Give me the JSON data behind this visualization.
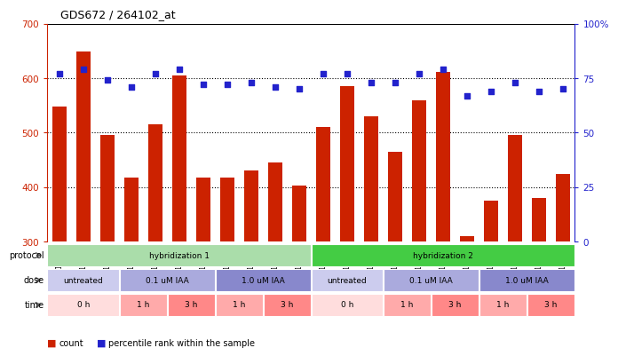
{
  "title": "GDS672 / 264102_at",
  "samples": [
    "GSM18228",
    "GSM18230",
    "GSM18232",
    "GSM18290",
    "GSM18292",
    "GSM18294",
    "GSM18296",
    "GSM18298",
    "GSM18300",
    "GSM18302",
    "GSM18304",
    "GSM18229",
    "GSM18231",
    "GSM18233",
    "GSM18291",
    "GSM18293",
    "GSM18295",
    "GSM18297",
    "GSM18299",
    "GSM18301",
    "GSM18303",
    "GSM18305"
  ],
  "bar_values": [
    548,
    648,
    495,
    418,
    515,
    605,
    418,
    418,
    430,
    445,
    403,
    510,
    585,
    530,
    465,
    560,
    612,
    310,
    375,
    495,
    380,
    425
  ],
  "dot_values": [
    77,
    79,
    74,
    71,
    77,
    79,
    72,
    72,
    73,
    71,
    70,
    77,
    77,
    73,
    73,
    77,
    79,
    67,
    69,
    73,
    69,
    70
  ],
  "ylim_left": [
    300,
    700
  ],
  "ylim_right": [
    0,
    100
  ],
  "yticks_left": [
    300,
    400,
    500,
    600,
    700
  ],
  "yticks_right": [
    0,
    25,
    50,
    75,
    100
  ],
  "bar_color": "#cc2200",
  "dot_color": "#2222cc",
  "bg_color": "#ffffff",
  "protocol_row": {
    "label": "protocol",
    "groups": [
      {
        "text": "hybridization 1",
        "start": 0,
        "end": 11,
        "color": "#aaddaa"
      },
      {
        "text": "hybridization 2",
        "start": 11,
        "end": 22,
        "color": "#44cc44"
      }
    ]
  },
  "dose_row": {
    "label": "dose",
    "groups": [
      {
        "text": "untreated",
        "start": 0,
        "end": 3,
        "color": "#ccccee"
      },
      {
        "text": "0.1 uM IAA",
        "start": 3,
        "end": 7,
        "color": "#aaaadd"
      },
      {
        "text": "1.0 uM IAA",
        "start": 7,
        "end": 11,
        "color": "#8888cc"
      },
      {
        "text": "untreated",
        "start": 11,
        "end": 14,
        "color": "#ccccee"
      },
      {
        "text": "0.1 uM IAA",
        "start": 14,
        "end": 18,
        "color": "#aaaadd"
      },
      {
        "text": "1.0 uM IAA",
        "start": 18,
        "end": 22,
        "color": "#8888cc"
      }
    ]
  },
  "time_row": {
    "label": "time",
    "groups": [
      {
        "text": "0 h",
        "start": 0,
        "end": 3,
        "color": "#ffdddd"
      },
      {
        "text": "1 h",
        "start": 3,
        "end": 5,
        "color": "#ffaaaa"
      },
      {
        "text": "3 h",
        "start": 5,
        "end": 7,
        "color": "#ff8888"
      },
      {
        "text": "1 h",
        "start": 7,
        "end": 9,
        "color": "#ffaaaa"
      },
      {
        "text": "3 h",
        "start": 9,
        "end": 11,
        "color": "#ff8888"
      },
      {
        "text": "0 h",
        "start": 11,
        "end": 14,
        "color": "#ffdddd"
      },
      {
        "text": "1 h",
        "start": 14,
        "end": 16,
        "color": "#ffaaaa"
      },
      {
        "text": "3 h",
        "start": 16,
        "end": 18,
        "color": "#ff8888"
      },
      {
        "text": "1 h",
        "start": 18,
        "end": 20,
        "color": "#ffaaaa"
      },
      {
        "text": "3 h",
        "start": 20,
        "end": 22,
        "color": "#ff8888"
      }
    ]
  },
  "legend": [
    {
      "color": "#cc2200",
      "label": "count"
    },
    {
      "color": "#2222cc",
      "label": "percentile rank within the sample"
    }
  ]
}
